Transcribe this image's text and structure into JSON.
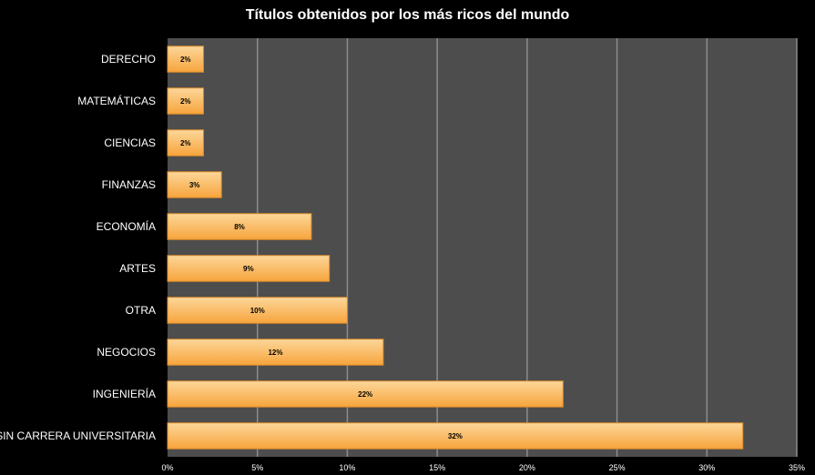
{
  "chart_data": {
    "type": "bar",
    "orientation": "horizontal",
    "title": "Títulos obtenidos por los más ricos del mundo",
    "xlabel": "",
    "ylabel": "",
    "categories": [
      "DERECHO",
      "MATEMÁTICAS",
      "CIENCIAS",
      "FINANZAS",
      "ECONOMÍA",
      "ARTES",
      "OTRA",
      "NEGOCIOS",
      "INGENIERÍA",
      "SIN CARRERA UNIVERSITARIA"
    ],
    "values": [
      2,
      2,
      2,
      3,
      8,
      9,
      10,
      12,
      22,
      32
    ],
    "data_labels": [
      "2%",
      "2%",
      "2%",
      "3%",
      "8%",
      "9%",
      "10%",
      "12%",
      "22%",
      "32%"
    ],
    "xlim": [
      0,
      35
    ],
    "x_ticks": [
      0,
      5,
      10,
      15,
      20,
      25,
      30,
      35
    ],
    "x_tick_labels": [
      "0%",
      "5%",
      "10%",
      "15%",
      "20%",
      "25%",
      "30%",
      "35%"
    ],
    "grid": true,
    "legend": "none",
    "colors": {
      "background": "#000000",
      "plot_area": "#4d4d4d",
      "gridline": "#8c8c8c",
      "bar_top": "#fcd79a",
      "bar_bottom": "#f7a43c",
      "bar_edge": "#d98a2a",
      "label_text": "#ffffff",
      "data_label_text": "#000000"
    }
  }
}
